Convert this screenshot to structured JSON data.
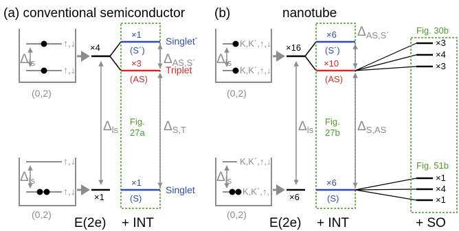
{
  "panels": {
    "a": {
      "title": "(a) conventional semiconductor"
    },
    "b": {
      "title": "(b)",
      "subtitle": "nanotube"
    }
  },
  "labels": {
    "delta_main": "Δ",
    "delta_sub_ls": "ls",
    "delta_as_s_main": "Δ",
    "delta_as_s_sub": "AS,S´",
    "delta_s_t_sub": "S,T",
    "delta_s_as_sub": "S,AS",
    "spin_a": "↑,↓",
    "spin_b": "K,K´,↑,↓",
    "occupation": "(0,2)",
    "e2e": "E(2e)",
    "int": "+ INT",
    "so": "+ SO"
  },
  "panel_a_levels": {
    "upper_mult": "×4",
    "lower_mult": "×1",
    "singlet_prime_mult": "×1",
    "singlet_prime_sym": "(S´)",
    "singlet_prime_name": "Singlet´",
    "triplet_mult": "×3",
    "triplet_sym": "(AS)",
    "triplet_name": "Triplet",
    "singlet_mult": "×1",
    "singlet_sym": "(S)",
    "singlet_name": "Singlet",
    "fig_ref_line1": "Fig.",
    "fig_ref_line2": "27a"
  },
  "panel_b_levels": {
    "upper_mult": "×16",
    "lower_mult": "×6",
    "s_prime_mult": "×6",
    "s_prime_sym": "(S´)",
    "as_mult": "×10",
    "as_sym": "(AS)",
    "s_mult": "×6",
    "s_sym": "(S)",
    "fig_ref_line1": "Fig.",
    "fig_ref_line2": "27b",
    "so_upper_ref": "Fig. 30b",
    "so_upper_mults": [
      "×3",
      "×4",
      "×3"
    ],
    "so_lower_ref": "Fig. 51b",
    "so_lower_mults": [
      "×1",
      "×4",
      "×1"
    ]
  },
  "colors": {
    "gray": "#8c8c8c",
    "blue": "#2e4fa8",
    "red": "#d42a2a",
    "green": "#4e9a2a",
    "black": "#000000"
  }
}
